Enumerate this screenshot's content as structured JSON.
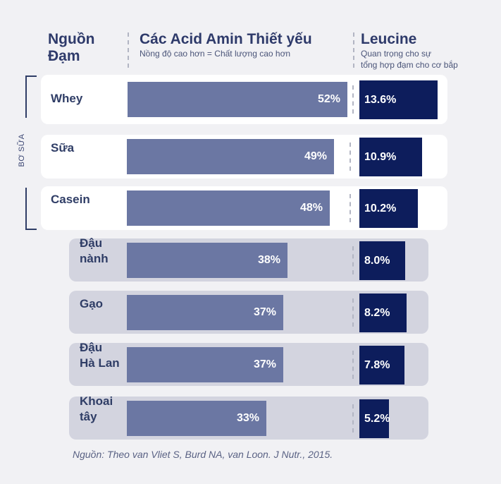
{
  "header": {
    "source_title": "Nguồn\nĐạm",
    "eaa_title": "Các Acid Amin Thiết yếu",
    "eaa_subtitle": "Nồng độ cao hơn = Chất lượng cao hơn",
    "leucine_title": "Leucine",
    "leucine_subtitle": "Quan trọng cho sự\ntổng hợp đạm cho cơ bắp"
  },
  "group_label": "BƠ SỮA",
  "footnote": "Nguồn: Theo van Vliet S, Burd NA, van Loon. J Nutr., 2015.",
  "colors": {
    "eaa_bar": "#6b77a3",
    "leucine_bar": "#0d1d5c",
    "dairy_card": "#ffffff",
    "plant_card": "#d3d4df"
  },
  "chart_data": {
    "type": "bar",
    "categories": [
      "Whey",
      "Sữa",
      "Casein",
      "Đậu\nnành",
      "Gạo",
      "Đậu\nHà Lan",
      "Khoai\ntây"
    ],
    "series": [
      {
        "name": "Các Acid Amin Thiết yếu",
        "values": [
          52,
          49,
          48,
          38,
          37,
          37,
          33
        ],
        "labels": [
          "52%",
          "49%",
          "48%",
          "38%",
          "37%",
          "37%",
          "33%"
        ]
      },
      {
        "name": "Leucine",
        "values": [
          13.6,
          10.9,
          10.2,
          8.0,
          8.2,
          7.8,
          5.2
        ],
        "labels": [
          "13.6%",
          "10.9%",
          "10.2%",
          "8.0%",
          "8.2%",
          "7.8%",
          "5.2%"
        ]
      }
    ],
    "groups": [
      "dairy",
      "dairy",
      "dairy",
      "plant",
      "plant",
      "plant",
      "plant"
    ]
  }
}
